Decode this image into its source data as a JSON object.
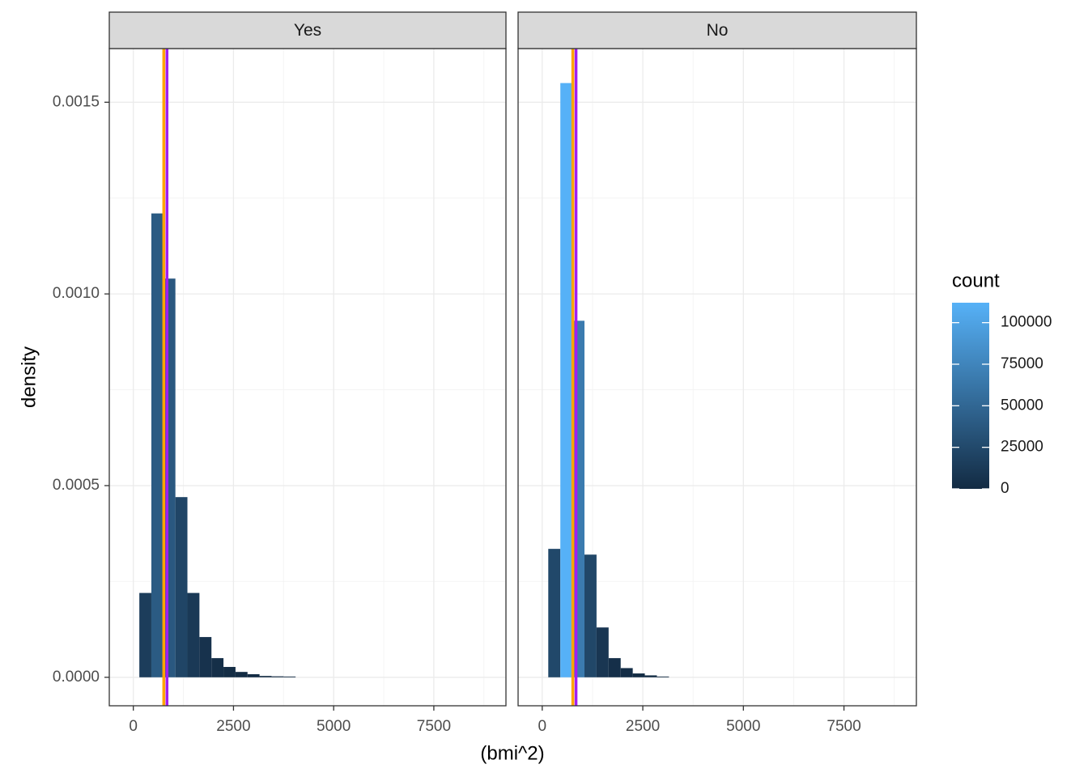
{
  "chart_data": {
    "type": "bar",
    "xlabel": "(bmi^2)",
    "ylabel": "density",
    "xlim": [
      -600,
      9300
    ],
    "ylim": [
      -7.43e-05,
      0.00164
    ],
    "x_ticks": [
      0,
      2500,
      5000,
      7500
    ],
    "x_tick_labels": [
      "0",
      "2500",
      "5000",
      "7500"
    ],
    "y_ticks": [
      0,
      0.0005,
      0.001,
      0.0015
    ],
    "y_tick_labels": [
      "0.0000",
      "0.0005",
      "0.0010",
      "0.0015"
    ],
    "bin_width": 300,
    "grid": true,
    "facets": [
      {
        "label": "Yes",
        "bins": [
          {
            "x_start": 150,
            "x_end": 450,
            "density": 0.00022,
            "count": 15000
          },
          {
            "x_start": 450,
            "x_end": 750,
            "density": 0.00121,
            "count": 40000
          },
          {
            "x_start": 750,
            "x_end": 1050,
            "density": 0.00104,
            "count": 38000
          },
          {
            "x_start": 1050,
            "x_end": 1350,
            "density": 0.00047,
            "count": 22000
          },
          {
            "x_start": 1350,
            "x_end": 1650,
            "density": 0.00022,
            "count": 12000
          },
          {
            "x_start": 1650,
            "x_end": 1950,
            "density": 0.000105,
            "count": 6000
          },
          {
            "x_start": 1950,
            "x_end": 2250,
            "density": 5e-05,
            "count": 3000
          },
          {
            "x_start": 2250,
            "x_end": 2550,
            "density": 2.7e-05,
            "count": 1500
          },
          {
            "x_start": 2550,
            "x_end": 2850,
            "density": 1.4e-05,
            "count": 800
          },
          {
            "x_start": 2850,
            "x_end": 3150,
            "density": 8e-06,
            "count": 400
          },
          {
            "x_start": 3150,
            "x_end": 3450,
            "density": 3.5e-06,
            "count": 200
          },
          {
            "x_start": 3450,
            "x_end": 3750,
            "density": 2.5e-06,
            "count": 120
          },
          {
            "x_start": 3750,
            "x_end": 4050,
            "density": 2e-06,
            "count": 80
          }
        ],
        "vlines": [
          {
            "x": 760,
            "color": "#FFA500"
          },
          {
            "x": 840,
            "color": "#A020F0"
          }
        ]
      },
      {
        "label": "No",
        "bins": [
          {
            "x_start": 150,
            "x_end": 450,
            "density": 0.000335,
            "count": 24000
          },
          {
            "x_start": 450,
            "x_end": 750,
            "density": 0.00155,
            "count": 112000
          },
          {
            "x_start": 750,
            "x_end": 1050,
            "density": 0.00093,
            "count": 67000
          },
          {
            "x_start": 1050,
            "x_end": 1350,
            "density": 0.00032,
            "count": 23000
          },
          {
            "x_start": 1350,
            "x_end": 1650,
            "density": 0.00013,
            "count": 9500
          },
          {
            "x_start": 1650,
            "x_end": 1950,
            "density": 5e-05,
            "count": 3600
          },
          {
            "x_start": 1950,
            "x_end": 2250,
            "density": 2.4e-05,
            "count": 1700
          },
          {
            "x_start": 2250,
            "x_end": 2550,
            "density": 1e-05,
            "count": 700
          },
          {
            "x_start": 2550,
            "x_end": 2850,
            "density": 5e-06,
            "count": 350
          },
          {
            "x_start": 2850,
            "x_end": 3150,
            "density": 2e-06,
            "count": 150
          }
        ],
        "vlines": [
          {
            "x": 760,
            "color": "#FFA500"
          },
          {
            "x": 840,
            "color": "#A020F0"
          }
        ]
      }
    ],
    "legend": {
      "title": "count",
      "placement": "right",
      "min": 0,
      "max": 112000,
      "low_color": "#132B43",
      "high_color": "#56B1F7",
      "ticks": [
        0,
        25000,
        50000,
        75000,
        100000
      ],
      "tick_labels": [
        "0",
        "25000",
        "50000",
        "75000",
        "100000"
      ]
    },
    "colors": {
      "strip_fill": "#D9D9D9",
      "panel_border": "#333333",
      "grid_major": "#EBEBEB",
      "grid_minor": "#F4F4F4",
      "axis_text": "#4D4D4D",
      "title_text": "#000000"
    }
  }
}
